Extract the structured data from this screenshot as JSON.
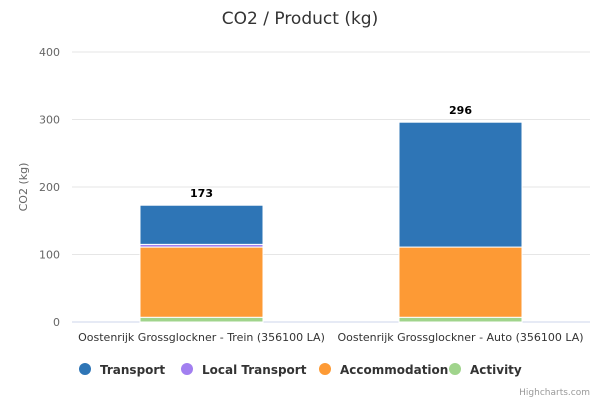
{
  "chart_data": {
    "type": "bar",
    "stacked": true,
    "title": "CO2 / Product (kg)",
    "xlabel": "",
    "ylabel": "CO2 (kg)",
    "ylim": [
      0,
      400
    ],
    "yticks": [
      0,
      100,
      200,
      300,
      400
    ],
    "categories": [
      "Oostenrijk Grossglockner - Trein (356100 LA)",
      "Oostenrijk Grossglockner - Auto (356100 LA)"
    ],
    "totals": [
      173,
      296
    ],
    "series": [
      {
        "name": "Activity",
        "color": "#a0d48c",
        "values": [
          7,
          7
        ]
      },
      {
        "name": "Accommodation",
        "color": "#fd9a35",
        "values": [
          104,
          104
        ]
      },
      {
        "name": "Local Transport",
        "color": "#a27ff0",
        "values": [
          4,
          0
        ]
      },
      {
        "name": "Transport",
        "color": "#2e75b6",
        "values": [
          58,
          185
        ]
      }
    ],
    "legend_order": [
      "Transport",
      "Local Transport",
      "Accommodation",
      "Activity"
    ],
    "legend_position": "bottom",
    "grid": true,
    "credit": "Highcharts.com"
  }
}
